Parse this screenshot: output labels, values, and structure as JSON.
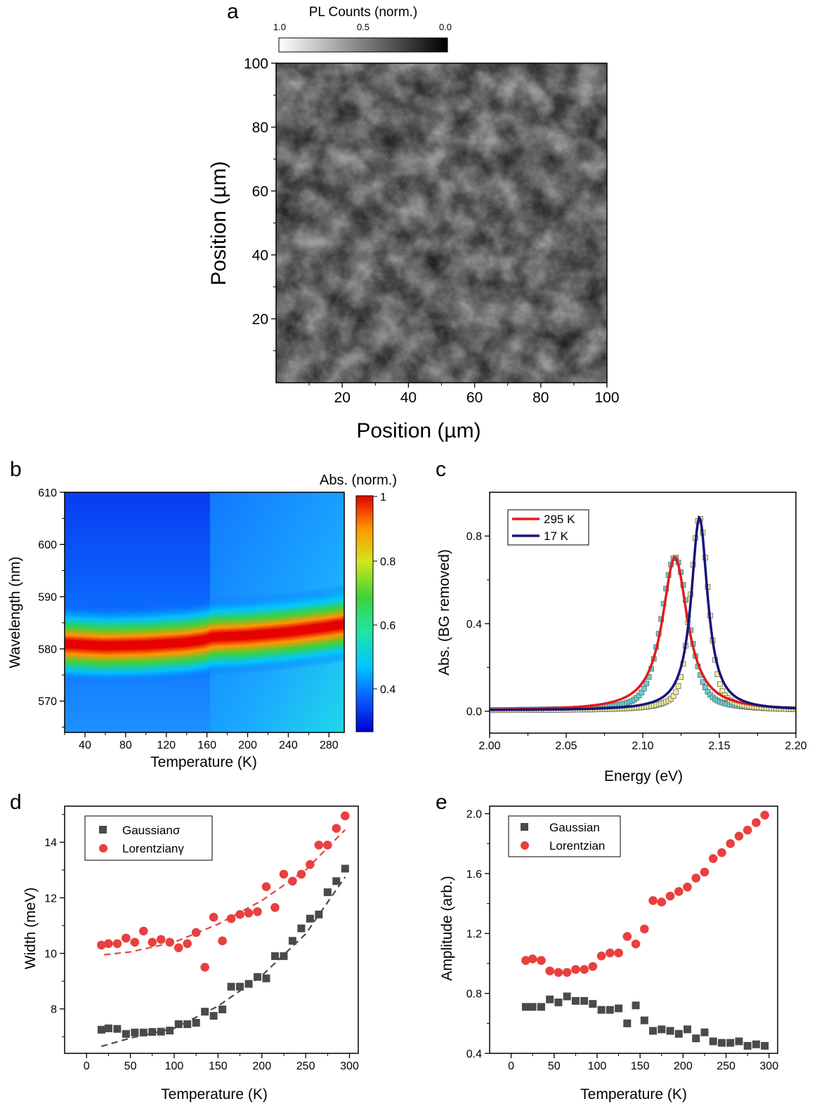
{
  "panels": {
    "a": {
      "letter": "a",
      "xlabel": "Position (µm)",
      "ylabel": "Position (µm)",
      "colorbar_title": "PL Counts (norm.)",
      "colorbar_ticks": [
        "1.0",
        "0.5",
        "0.0"
      ],
      "xticks": [
        "20",
        "40",
        "60",
        "80",
        "100"
      ],
      "yticks": [
        "20",
        "40",
        "60",
        "80",
        "100"
      ]
    },
    "b": {
      "letter": "b",
      "xlabel": "Temperature  (K)",
      "ylabel": "Wavelength (nm)",
      "colorbar_title": "Abs. (norm.)",
      "colorbar_ticks": [
        "1",
        "0.8",
        "0.6",
        "0.4"
      ],
      "xticks": [
        "40",
        "80",
        "120",
        "160",
        "200",
        "240",
        "280"
      ],
      "yticks": [
        "610",
        "600",
        "590",
        "580",
        "570"
      ]
    },
    "c": {
      "letter": "c",
      "xlabel": "Energy (eV)",
      "ylabel": "Abs. (BG removed)",
      "xticks": [
        "2.00",
        "2.05",
        "2.10",
        "2.15",
        "2.20"
      ],
      "yticks": [
        "0.0",
        "0.4",
        "0.8"
      ],
      "legend": [
        "295 K",
        "17 K"
      ]
    },
    "d": {
      "letter": "d",
      "xlabel": "Temperature (K)",
      "ylabel": "Width (meV)",
      "xticks": [
        "0",
        "50",
        "100",
        "150",
        "200",
        "250",
        "300"
      ],
      "yticks": [
        "8",
        "10",
        "12",
        "14"
      ],
      "legend": [
        "Gaussianσ",
        "Lorentzianγ"
      ]
    },
    "e": {
      "letter": "e",
      "xlabel": "Temperature (K)",
      "ylabel": "Amplitude (arb.)",
      "xticks": [
        "0",
        "50",
        "100",
        "150",
        "200",
        "250",
        "300"
      ],
      "yticks": [
        "0.4",
        "0.8",
        "1.2",
        "1.6",
        "2.0"
      ],
      "legend": [
        "Gaussian",
        "Lorentzian"
      ]
    }
  },
  "colors": {
    "red": "#e8403e",
    "gray": "#4a4a4a",
    "navy": "#15157a",
    "fit_red": "#e41b1b",
    "cyan_marker": "#5fd3d6",
    "yellow_marker": "#f4ef9a"
  },
  "chart_data": [
    {
      "id": "a",
      "type": "heatmap",
      "colormap": "gray",
      "xlabel": "Position (µm)",
      "ylabel": "Position (µm)",
      "xlim": [
        0,
        100
      ],
      "ylim": [
        0,
        100
      ],
      "colorbar": {
        "title": "PL Counts (norm.)",
        "range": [
          1.0,
          0.0
        ]
      }
    },
    {
      "id": "b",
      "type": "heatmap",
      "colormap": "jet",
      "xlabel": "Temperature  (K)",
      "ylabel": "Wavelength (nm)",
      "xlim": [
        20,
        295
      ],
      "ylim": [
        564,
        610
      ],
      "colorbar": {
        "title": "Abs. (norm.)",
        "range": [
          0.3,
          1
        ]
      },
      "peak_wavelength": {
        "x": [
          20,
          60,
          100,
          140,
          158,
          165,
          200,
          240,
          280,
          295
        ],
        "y": [
          580.7,
          580.3,
          580.5,
          581.0,
          581.5,
          582.0,
          582.3,
          583.0,
          584.0,
          584.5
        ]
      }
    },
    {
      "id": "c",
      "type": "line",
      "xlabel": "Energy (eV)",
      "ylabel": "Abs. (BG removed)",
      "xlim": [
        2.0,
        2.2
      ],
      "ylim": [
        -0.1,
        1.0
      ],
      "series": [
        {
          "name": "295 K",
          "center": 2.121,
          "amplitude": 0.7,
          "hwhm": 0.01,
          "baseline": 0.003
        },
        {
          "name": "17 K",
          "center": 2.137,
          "amplitude": 0.88,
          "hwhm": 0.0065,
          "baseline": 0.004
        }
      ]
    },
    {
      "id": "d",
      "type": "scatter",
      "xlabel": "Temperature (K)",
      "ylabel": "Width (meV)",
      "xlim": [
        -25,
        310
      ],
      "ylim": [
        6.4,
        15.3
      ],
      "series": [
        {
          "name": "Gaussianσ",
          "marker": "square",
          "x": [
            17,
            25,
            35,
            45,
            55,
            65,
            75,
            85,
            95,
            105,
            115,
            125,
            135,
            145,
            155,
            165,
            175,
            185,
            195,
            205,
            215,
            225,
            235,
            245,
            255,
            265,
            275,
            285,
            295
          ],
          "y": [
            7.25,
            7.3,
            7.28,
            7.1,
            7.15,
            7.15,
            7.17,
            7.18,
            7.22,
            7.45,
            7.45,
            7.5,
            7.9,
            7.75,
            7.98,
            8.8,
            8.8,
            8.9,
            9.15,
            9.1,
            9.9,
            9.9,
            10.45,
            10.9,
            11.25,
            11.4,
            12.2,
            12.6,
            13.05
          ]
        },
        {
          "name": "Lorentzianγ",
          "marker": "circle",
          "x": [
            17,
            25,
            35,
            45,
            55,
            65,
            75,
            85,
            95,
            105,
            115,
            125,
            135,
            145,
            155,
            165,
            175,
            185,
            195,
            205,
            215,
            225,
            235,
            245,
            255,
            265,
            275,
            285,
            295
          ],
          "y": [
            10.3,
            10.35,
            10.35,
            10.55,
            10.4,
            10.8,
            10.4,
            10.5,
            10.4,
            10.2,
            10.35,
            10.75,
            9.5,
            11.3,
            10.45,
            11.25,
            11.4,
            11.45,
            11.5,
            12.4,
            11.65,
            12.85,
            12.6,
            12.85,
            13.2,
            13.9,
            13.9,
            14.5,
            14.95
          ]
        }
      ],
      "fits": [
        {
          "series": "Gaussianσ",
          "x": [
            17,
            50,
            100,
            150,
            200,
            250,
            295
          ],
          "y": [
            6.65,
            6.95,
            7.3,
            8.1,
            9.2,
            10.7,
            12.75
          ]
        },
        {
          "series": "Lorentzianγ",
          "x": [
            20,
            50,
            100,
            150,
            200,
            250,
            295
          ],
          "y": [
            9.95,
            10.05,
            10.4,
            11.05,
            11.9,
            13.0,
            14.45
          ]
        }
      ]
    },
    {
      "id": "e",
      "type": "scatter",
      "xlabel": "Temperature (K)",
      "ylabel": "Amplitude (arb.)",
      "xlim": [
        -25,
        310
      ],
      "ylim": [
        0.4,
        2.05
      ],
      "series": [
        {
          "name": "Gaussian",
          "marker": "square",
          "x": [
            17,
            25,
            35,
            45,
            55,
            65,
            75,
            85,
            95,
            105,
            115,
            125,
            135,
            145,
            155,
            165,
            175,
            185,
            195,
            205,
            215,
            225,
            235,
            245,
            255,
            265,
            275,
            285,
            295
          ],
          "y": [
            0.71,
            0.71,
            0.71,
            0.76,
            0.74,
            0.78,
            0.75,
            0.75,
            0.73,
            0.69,
            0.69,
            0.7,
            0.6,
            0.72,
            0.62,
            0.55,
            0.56,
            0.55,
            0.53,
            0.56,
            0.5,
            0.54,
            0.48,
            0.47,
            0.47,
            0.48,
            0.45,
            0.46,
            0.45
          ]
        },
        {
          "name": "Lorentzian",
          "marker": "circle",
          "x": [
            17,
            25,
            35,
            45,
            55,
            65,
            75,
            85,
            95,
            105,
            115,
            125,
            135,
            145,
            155,
            165,
            175,
            185,
            195,
            205,
            215,
            225,
            235,
            245,
            255,
            265,
            275,
            285,
            295
          ],
          "y": [
            1.02,
            1.03,
            1.02,
            0.95,
            0.94,
            0.94,
            0.96,
            0.96,
            0.98,
            1.05,
            1.07,
            1.07,
            1.18,
            1.13,
            1.23,
            1.42,
            1.41,
            1.45,
            1.48,
            1.51,
            1.57,
            1.61,
            1.7,
            1.74,
            1.8,
            1.85,
            1.89,
            1.94,
            1.99
          ]
        }
      ]
    }
  ]
}
